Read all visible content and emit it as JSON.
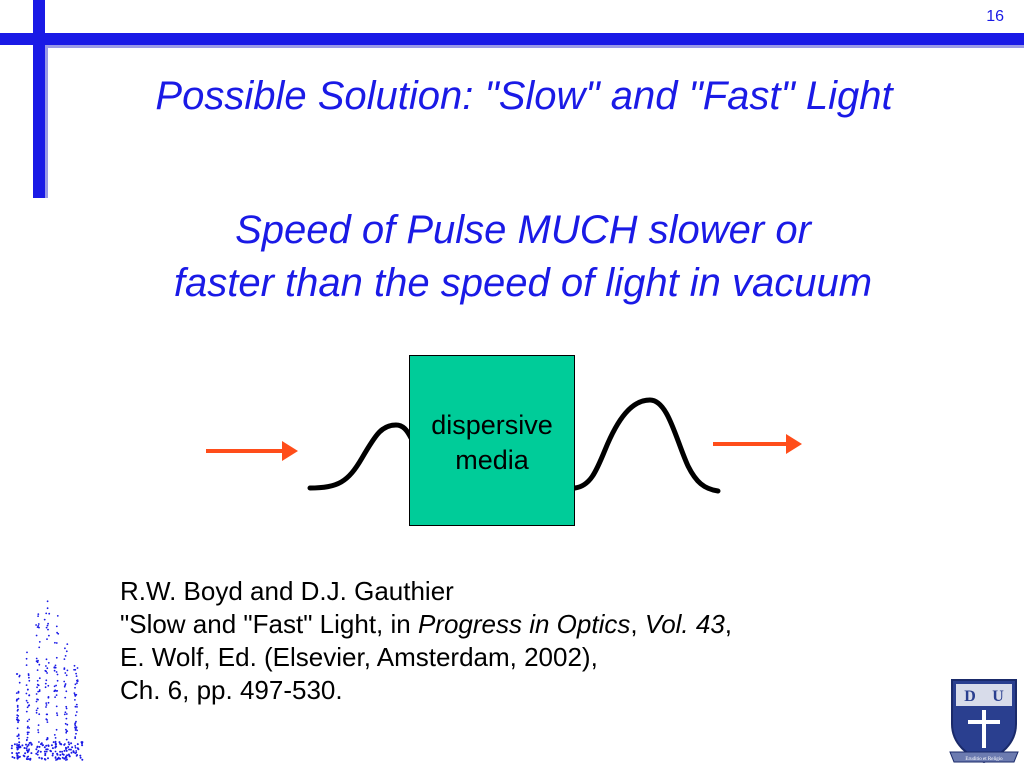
{
  "slide": {
    "number": "16",
    "title": "Possible Solution: \"Slow\" and \"Fast\" Light",
    "subtitle_lines": [
      "Speed of Pulse MUCH slower or",
      "faster than the speed of light in vacuum"
    ]
  },
  "diagram": {
    "box_lines": [
      "dispersive",
      "media"
    ],
    "box_color": "#00cc99",
    "arrow_color": "#ff4d1a",
    "pulse_color": "#000000"
  },
  "reference": {
    "authors": "R.W. Boyd and D.J. Gauthier",
    "line2_pre": "\"Slow and \"Fast\" Light, in ",
    "journal": "Progress in Optics",
    "comma1": ", ",
    "volume": "Vol. 43",
    "comma2": ",",
    "line3": "E. Wolf, Ed. (Elsevier, Amsterdam, 2002),",
    "line4": "Ch. 6, pp. 497-530."
  },
  "logos": {
    "left": "dotted-particle-logo",
    "right": "university-crest-logo",
    "crest_letters": [
      "D",
      "U"
    ],
    "crest_motto": "Eruditio et Religio"
  },
  "colors": {
    "accent": "#1a1ae6",
    "accent_shadow": "#9a9ae6"
  }
}
